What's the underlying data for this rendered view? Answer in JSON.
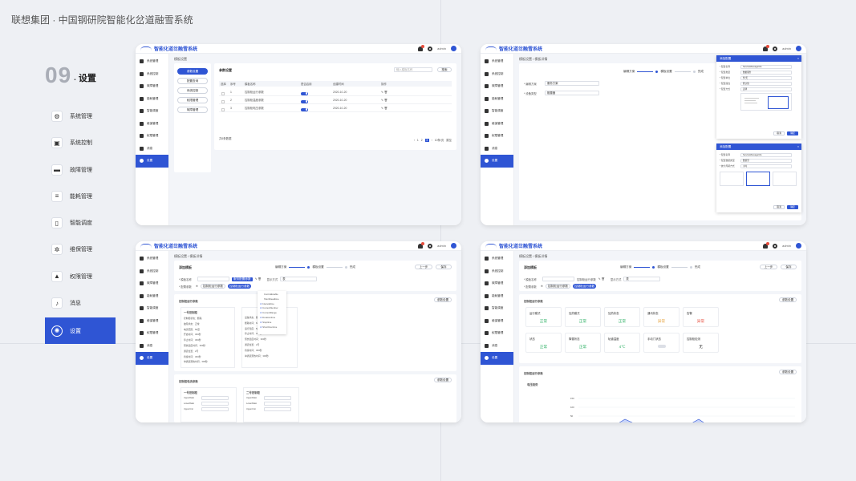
{
  "page_title": "联想集团 · 中国钢研院智能化岔道融雪系统",
  "section": {
    "number": "09",
    "dot": "·",
    "label": "设置"
  },
  "nav": [
    {
      "label": "系统管理",
      "icon": "system-icon"
    },
    {
      "label": "系统控制",
      "icon": "control-icon"
    },
    {
      "label": "故障管理",
      "icon": "fault-icon"
    },
    {
      "label": "能耗管理",
      "icon": "energy-icon"
    },
    {
      "label": "智能调度",
      "icon": "dispatch-icon"
    },
    {
      "label": "维保管理",
      "icon": "maintenance-icon"
    },
    {
      "label": "权限管理",
      "icon": "lock-icon"
    },
    {
      "label": "消息",
      "icon": "bell-icon"
    },
    {
      "label": "设置",
      "icon": "settings-icon"
    }
  ],
  "app": {
    "logo": "智能化道岔融雪系统",
    "user": "admin"
  },
  "sidebar": [
    "系统管理",
    "系统控制",
    "故障管理",
    "能耗管理",
    "智能调度",
    "维保管理",
    "权限管理",
    "消息",
    "设置"
  ],
  "s1": {
    "crumb": "模板设置",
    "menu": [
      "参数设置",
      "配置查询",
      "系统控制",
      "权限管理",
      "故障管理"
    ],
    "panel_title": "参数设置",
    "search_placeholder": "输入模板名称",
    "search_btn": "搜索",
    "columns": [
      "选择",
      "序号",
      "模板名称",
      "是否启用",
      "创建时间",
      "操作"
    ],
    "rows": [
      {
        "no": "1",
        "name": "控制柜运行参数",
        "time": "2020-10-20"
      },
      {
        "no": "2",
        "name": "控制柜温度参数",
        "time": "2020-10-20"
      },
      {
        "no": "3",
        "name": "控制柜电压参数",
        "time": "2020-10-20"
      }
    ],
    "total": "共6条数据",
    "pages": [
      "1",
      "2",
      "3"
    ],
    "page_size": "10条/页",
    "goto": "跳至"
  },
  "s2": {
    "crumb": "模板设置 / 模板详情",
    "steps": [
      "编辑方案",
      "模板设置",
      "完成"
    ],
    "form": [
      {
        "label": "* 编辑方案",
        "value": "服务方案"
      },
      {
        "label": "* 设备类型",
        "value": "融雪器"
      }
    ],
    "dialog_title": "添加配置",
    "dialog_rows": [
      {
        "label": "* 配置名称",
        "value": "ServiceMessageInfo"
      },
      {
        "label": "* 配置类型",
        "value": "数据服务"
      },
      {
        "label": "* 配置单位",
        "value": "件/天"
      },
      {
        "label": "* 配置属性",
        "value": "默认值"
      },
      {
        "label": "* 配置方式",
        "value": "选择"
      }
    ],
    "dialog_cancel": "取消",
    "dialog_ok": "确定",
    "dialog2_rows": [
      {
        "label": "* 配置名称",
        "value": "ServiceMessageInfo"
      },
      {
        "label": "* 配置数据类型",
        "value": "数值型"
      },
      {
        "label": "* 统计周期方式",
        "value": "小时"
      }
    ]
  },
  "s3": {
    "crumb": "模板设置 / 模板详情",
    "header": "添加模板",
    "steps": [
      "编辑方案",
      "模板设置",
      "完成"
    ],
    "prev": "上一步",
    "save": "保存",
    "tag": "服务配置参数",
    "label_template": "* 模板名称",
    "label_config": "* 配置参数",
    "label_show": "显示方式",
    "show_value": "表",
    "chip1": "控制柜运行参数",
    "chip2": "控制柜运行参数",
    "dropdown": [
      "ControlEnable",
      "ShortDeadtime",
      "Intervaltime",
      "CurrentNumber",
      "CurrentRange",
      "Durationtime",
      "Stoptime",
      "ShortOvertime"
    ],
    "group_title": "控制柜运行参数",
    "group_btn": "参数设置",
    "block1_title": "一号控制柜",
    "block1_rows": [
      "控制柜状态：断路",
      "故障状态：正常",
      "电流范围：50度",
      "开启时间：300秒",
      "停止时间：300秒",
      "预热温度时间：300秒",
      "通道位置：2号",
      "持续时间：300秒",
      "单通道预热时间：300秒"
    ],
    "block1b_rows": [
      "设备状态：断路",
      "断路时间：6秒",
      "运行温度：5度",
      "停止时间：300秒",
      "预热温度时间：300秒",
      "通道位置：2号",
      "持续时间：300秒",
      "单通道预热时间：300秒"
    ],
    "group2_title": "控制柜电流参数",
    "group2_btn": "参数设置",
    "block2_title": "一号控制柜",
    "block3_title": "二号控制柜",
    "block2_rows": [
      "UpperRatio",
      "LowerRatio",
      "UpperUnit"
    ]
  },
  "s4": {
    "crumb": "模板设置 / 模板详情",
    "header": "添加模板",
    "steps": [
      "编辑方案",
      "模板设置",
      "完成"
    ],
    "prev": "上一步",
    "save": "保存",
    "label_template": "* 模板名称",
    "template_value": "控制柜运行参数",
    "label_config": "* 配置参数",
    "label_show": "显示方式",
    "show_value": "表",
    "chip1": "控制柜运行参数",
    "chip2": "控制柜运行参数",
    "group_title": "控制柜运行参数",
    "group_btn": "参数设置",
    "cards": [
      {
        "name": "运行模式",
        "value": "正常",
        "color": "#27ae60"
      },
      {
        "name": "加热模式",
        "value": "正常",
        "color": "#27ae60"
      },
      {
        "name": "加热状态",
        "value": "正常",
        "color": "#27ae60"
      },
      {
        "name": "通讯状态",
        "value": "异常",
        "color": "#e6a23c"
      },
      {
        "name": "告警",
        "value": "异常",
        "color": "#e74c3c"
      },
      {
        "name": "状态",
        "value": "正常",
        "color": "#27ae60"
      },
      {
        "name": "降雪状态",
        "value": "正常",
        "color": "#27ae60"
      },
      {
        "name": "轨道温度",
        "value": "4℃",
        "color": "#27ae60"
      },
      {
        "name": "手动门状态",
        "value": "",
        "color": "#333333"
      },
      {
        "name": "控制柜检测",
        "value": "无",
        "color": "#333333"
      }
    ],
    "group2_title": "控制柜运行参数",
    "group2_btn": "参数设置",
    "chart_title": "电压趋势",
    "ticks": [
      "150",
      "100",
      "50",
      "100"
    ],
    "accent": "#2f55d4"
  }
}
